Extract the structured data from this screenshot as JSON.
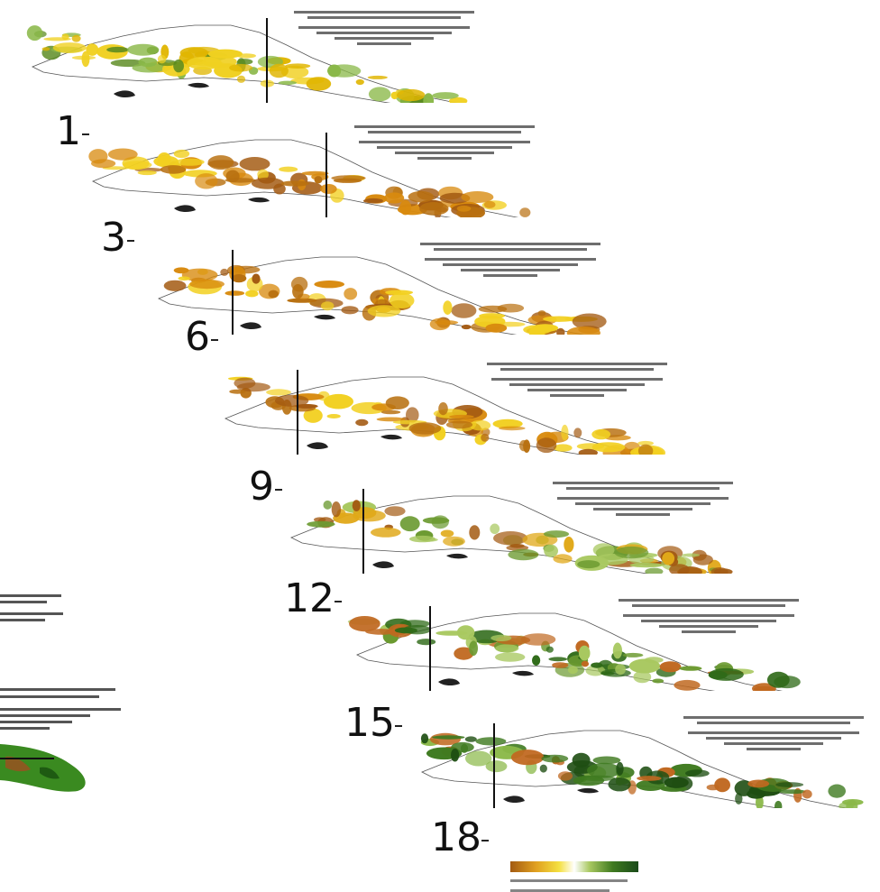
{
  "panels": [
    {
      "label": "1",
      "palette": [
        "#e0b500",
        "#f0d020",
        "#5a8a20",
        "#8ab848"
      ]
    },
    {
      "label": "3",
      "palette": [
        "#a35a12",
        "#d88a0e",
        "#f2d020",
        "#b87010"
      ]
    },
    {
      "label": "6",
      "palette": [
        "#a35a12",
        "#d88a0e",
        "#f2d020",
        "#b87010"
      ]
    },
    {
      "label": "9",
      "palette": [
        "#a35a12",
        "#d88a0e",
        "#f2d020",
        "#b87010"
      ]
    },
    {
      "label": "12",
      "palette": [
        "#a35a12",
        "#e0a818",
        "#6b9a30",
        "#a8c860"
      ]
    },
    {
      "label": "15",
      "palette": [
        "#2f6a18",
        "#6b9a30",
        "#a8c860",
        "#c06820"
      ]
    },
    {
      "label": "18",
      "palette": [
        "#1e4e12",
        "#3f7a20",
        "#8ab848",
        "#c06820"
      ]
    }
  ],
  "legend": {
    "colors": [
      "#a35a12",
      "#e0a020",
      "#f4e040",
      "#ffffff",
      "#a8c860",
      "#3f7a20",
      "#1a4a1a"
    ]
  }
}
